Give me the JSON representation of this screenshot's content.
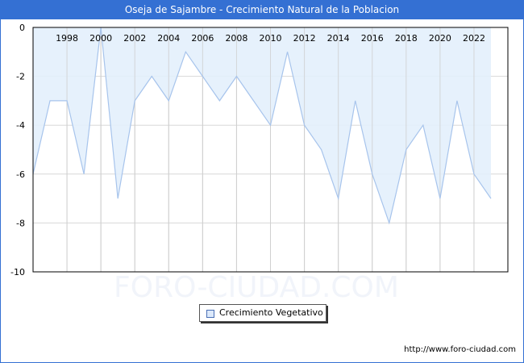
{
  "header": {
    "title": "Oseja de Sajambre - Crecimiento Natural de la Poblacion"
  },
  "legend": {
    "label": "Crecimiento Vegetativo"
  },
  "footer": {
    "url": "http://www.foro-ciudad.com"
  },
  "watermark": "FORO-CIUDAD.COM",
  "colors": {
    "title_bg": "#3470d3",
    "area_fill": "#e3f0fc",
    "line": "#a7c4ec",
    "grid": "#d8d8d8"
  },
  "chart_data": {
    "type": "area",
    "title": "Oseja de Sajambre - Crecimiento Natural de la Poblacion",
    "xlabel": "",
    "ylabel": "",
    "x": [
      1996,
      1997,
      1998,
      1999,
      2000,
      2001,
      2002,
      2003,
      2004,
      2005,
      2006,
      2007,
      2008,
      2009,
      2010,
      2011,
      2012,
      2013,
      2014,
      2015,
      2016,
      2017,
      2018,
      2019,
      2020,
      2021,
      2022,
      2023
    ],
    "series": [
      {
        "name": "Crecimiento Vegetativo",
        "values": [
          -6,
          -3,
          -3,
          -6,
          0,
          -7,
          -3,
          -2,
          -3,
          -1,
          -2,
          -3,
          -2,
          -3,
          -4,
          -1,
          -4,
          -5,
          -7,
          -3,
          -6,
          -8,
          -5,
          -4,
          -7,
          -3,
          -6,
          -7
        ]
      }
    ],
    "x_tick_labels": [
      "1998",
      "2000",
      "2002",
      "2004",
      "2006",
      "2008",
      "2010",
      "2012",
      "2014",
      "2016",
      "2018",
      "2020",
      "2022"
    ],
    "y_tick_labels": [
      "0",
      "-2",
      "-4",
      "-6",
      "-8",
      "-10"
    ],
    "ylim": [
      -10,
      0
    ],
    "grid": true,
    "legend_position": "bottom-center"
  }
}
